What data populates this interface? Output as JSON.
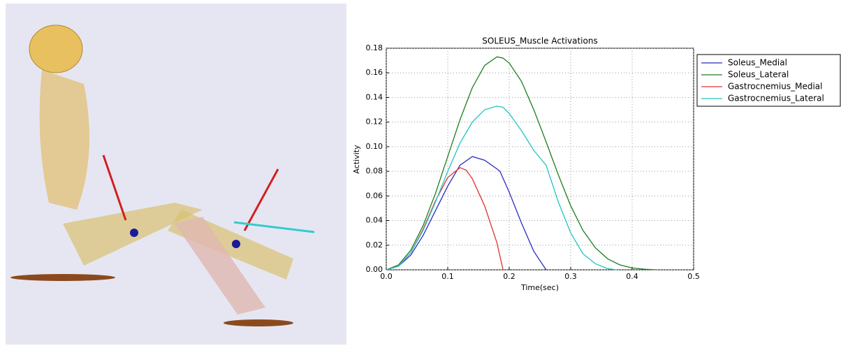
{
  "chart_data": {
    "type": "line",
    "title": "SOLEUS_Muscle Activations",
    "xlabel": "Time(sec)",
    "ylabel": "Activity",
    "xlim": [
      0,
      0.5
    ],
    "ylim": [
      0,
      0.18
    ],
    "grid": true,
    "legend": "outside-right",
    "xticks": [
      {
        "value": 0,
        "label": "0.0"
      },
      {
        "value": 0.1,
        "label": "0.1"
      },
      {
        "value": 0.2,
        "label": "0.2"
      },
      {
        "value": 0.3,
        "label": "0.3"
      },
      {
        "value": 0.4,
        "label": "0.4"
      },
      {
        "value": 0.5,
        "label": "0.5"
      }
    ],
    "yticks": [
      {
        "value": 0,
        "label": "0.00"
      },
      {
        "value": 0.02,
        "label": "0.02"
      },
      {
        "value": 0.04,
        "label": "0.04"
      },
      {
        "value": 0.06,
        "label": "0.06"
      },
      {
        "value": 0.08,
        "label": "0.08"
      },
      {
        "value": 0.1,
        "label": "0.10"
      },
      {
        "value": 0.12,
        "label": "0.12"
      },
      {
        "value": 0.14,
        "label": "0.14"
      },
      {
        "value": 0.16,
        "label": "0.16"
      },
      {
        "value": 0.18,
        "label": "0.18"
      }
    ],
    "series": [
      {
        "name": "Soleus_Medial",
        "color": "#2b2bc4",
        "x": [
          0,
          0.02,
          0.04,
          0.06,
          0.08,
          0.1,
          0.12,
          0.14,
          0.16,
          0.18,
          0.185,
          0.2,
          0.22,
          0.24,
          0.26
        ],
        "values": [
          0,
          0.003,
          0.012,
          0.028,
          0.048,
          0.068,
          0.085,
          0.092,
          0.089,
          0.082,
          0.08,
          0.063,
          0.038,
          0.015,
          0
        ]
      },
      {
        "name": "Soleus_Lateral",
        "color": "#1e7d1e",
        "x": [
          0,
          0.02,
          0.04,
          0.06,
          0.08,
          0.1,
          0.12,
          0.14,
          0.16,
          0.18,
          0.19,
          0.2,
          0.22,
          0.24,
          0.26,
          0.28,
          0.3,
          0.32,
          0.34,
          0.36,
          0.38,
          0.4,
          0.42,
          0.44
        ],
        "values": [
          0,
          0.004,
          0.016,
          0.036,
          0.062,
          0.092,
          0.122,
          0.148,
          0.166,
          0.173,
          0.172,
          0.168,
          0.153,
          0.13,
          0.104,
          0.077,
          0.052,
          0.032,
          0.018,
          0.009,
          0.004,
          0.0015,
          0.0005,
          0
        ]
      },
      {
        "name": "Gastrocnemius_Medial",
        "color": "#e03030",
        "x": [
          0,
          0.02,
          0.04,
          0.06,
          0.08,
          0.1,
          0.12,
          0.13,
          0.14,
          0.16,
          0.18,
          0.19
        ],
        "values": [
          0,
          0.003,
          0.014,
          0.033,
          0.056,
          0.075,
          0.083,
          0.081,
          0.074,
          0.052,
          0.022,
          0
        ]
      },
      {
        "name": "Gastrocnemius_Lateral",
        "color": "#22c4c4",
        "x": [
          0,
          0.02,
          0.04,
          0.06,
          0.08,
          0.1,
          0.12,
          0.14,
          0.16,
          0.18,
          0.19,
          0.2,
          0.22,
          0.24,
          0.26,
          0.28,
          0.3,
          0.32,
          0.34,
          0.36,
          0.375
        ],
        "values": [
          0,
          0.003,
          0.014,
          0.032,
          0.055,
          0.08,
          0.103,
          0.12,
          0.13,
          0.133,
          0.132,
          0.127,
          0.113,
          0.097,
          0.085,
          0.055,
          0.03,
          0.013,
          0.005,
          0.001,
          0
        ]
      }
    ]
  }
}
